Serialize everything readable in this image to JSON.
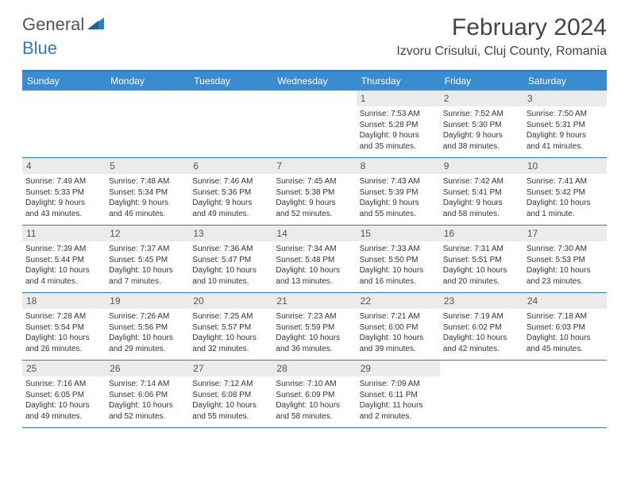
{
  "logo": {
    "general": "General",
    "blue": "Blue"
  },
  "title": "February 2024",
  "location": "Izvoru Crisului, Cluj County, Romania",
  "colors": {
    "header_bar": "#3a8bd0",
    "accent_line": "#2f7bbf",
    "day_number_bg": "#ebebeb",
    "text": "#333333",
    "background": "#ffffff"
  },
  "weekdays": [
    "Sunday",
    "Monday",
    "Tuesday",
    "Wednesday",
    "Thursday",
    "Friday",
    "Saturday"
  ],
  "weeks": [
    [
      null,
      null,
      null,
      null,
      {
        "n": "1",
        "sr": "Sunrise: 7:53 AM",
        "ss": "Sunset: 5:28 PM",
        "d1": "Daylight: 9 hours",
        "d2": "and 35 minutes."
      },
      {
        "n": "2",
        "sr": "Sunrise: 7:52 AM",
        "ss": "Sunset: 5:30 PM",
        "d1": "Daylight: 9 hours",
        "d2": "and 38 minutes."
      },
      {
        "n": "3",
        "sr": "Sunrise: 7:50 AM",
        "ss": "Sunset: 5:31 PM",
        "d1": "Daylight: 9 hours",
        "d2": "and 41 minutes."
      }
    ],
    [
      {
        "n": "4",
        "sr": "Sunrise: 7:49 AM",
        "ss": "Sunset: 5:33 PM",
        "d1": "Daylight: 9 hours",
        "d2": "and 43 minutes."
      },
      {
        "n": "5",
        "sr": "Sunrise: 7:48 AM",
        "ss": "Sunset: 5:34 PM",
        "d1": "Daylight: 9 hours",
        "d2": "and 46 minutes."
      },
      {
        "n": "6",
        "sr": "Sunrise: 7:46 AM",
        "ss": "Sunset: 5:36 PM",
        "d1": "Daylight: 9 hours",
        "d2": "and 49 minutes."
      },
      {
        "n": "7",
        "sr": "Sunrise: 7:45 AM",
        "ss": "Sunset: 5:38 PM",
        "d1": "Daylight: 9 hours",
        "d2": "and 52 minutes."
      },
      {
        "n": "8",
        "sr": "Sunrise: 7:43 AM",
        "ss": "Sunset: 5:39 PM",
        "d1": "Daylight: 9 hours",
        "d2": "and 55 minutes."
      },
      {
        "n": "9",
        "sr": "Sunrise: 7:42 AM",
        "ss": "Sunset: 5:41 PM",
        "d1": "Daylight: 9 hours",
        "d2": "and 58 minutes."
      },
      {
        "n": "10",
        "sr": "Sunrise: 7:41 AM",
        "ss": "Sunset: 5:42 PM",
        "d1": "Daylight: 10 hours",
        "d2": "and 1 minute."
      }
    ],
    [
      {
        "n": "11",
        "sr": "Sunrise: 7:39 AM",
        "ss": "Sunset: 5:44 PM",
        "d1": "Daylight: 10 hours",
        "d2": "and 4 minutes."
      },
      {
        "n": "12",
        "sr": "Sunrise: 7:37 AM",
        "ss": "Sunset: 5:45 PM",
        "d1": "Daylight: 10 hours",
        "d2": "and 7 minutes."
      },
      {
        "n": "13",
        "sr": "Sunrise: 7:36 AM",
        "ss": "Sunset: 5:47 PM",
        "d1": "Daylight: 10 hours",
        "d2": "and 10 minutes."
      },
      {
        "n": "14",
        "sr": "Sunrise: 7:34 AM",
        "ss": "Sunset: 5:48 PM",
        "d1": "Daylight: 10 hours",
        "d2": "and 13 minutes."
      },
      {
        "n": "15",
        "sr": "Sunrise: 7:33 AM",
        "ss": "Sunset: 5:50 PM",
        "d1": "Daylight: 10 hours",
        "d2": "and 16 minutes."
      },
      {
        "n": "16",
        "sr": "Sunrise: 7:31 AM",
        "ss": "Sunset: 5:51 PM",
        "d1": "Daylight: 10 hours",
        "d2": "and 20 minutes."
      },
      {
        "n": "17",
        "sr": "Sunrise: 7:30 AM",
        "ss": "Sunset: 5:53 PM",
        "d1": "Daylight: 10 hours",
        "d2": "and 23 minutes."
      }
    ],
    [
      {
        "n": "18",
        "sr": "Sunrise: 7:28 AM",
        "ss": "Sunset: 5:54 PM",
        "d1": "Daylight: 10 hours",
        "d2": "and 26 minutes."
      },
      {
        "n": "19",
        "sr": "Sunrise: 7:26 AM",
        "ss": "Sunset: 5:56 PM",
        "d1": "Daylight: 10 hours",
        "d2": "and 29 minutes."
      },
      {
        "n": "20",
        "sr": "Sunrise: 7:25 AM",
        "ss": "Sunset: 5:57 PM",
        "d1": "Daylight: 10 hours",
        "d2": "and 32 minutes."
      },
      {
        "n": "21",
        "sr": "Sunrise: 7:23 AM",
        "ss": "Sunset: 5:59 PM",
        "d1": "Daylight: 10 hours",
        "d2": "and 36 minutes."
      },
      {
        "n": "22",
        "sr": "Sunrise: 7:21 AM",
        "ss": "Sunset: 6:00 PM",
        "d1": "Daylight: 10 hours",
        "d2": "and 39 minutes."
      },
      {
        "n": "23",
        "sr": "Sunrise: 7:19 AM",
        "ss": "Sunset: 6:02 PM",
        "d1": "Daylight: 10 hours",
        "d2": "and 42 minutes."
      },
      {
        "n": "24",
        "sr": "Sunrise: 7:18 AM",
        "ss": "Sunset: 6:03 PM",
        "d1": "Daylight: 10 hours",
        "d2": "and 45 minutes."
      }
    ],
    [
      {
        "n": "25",
        "sr": "Sunrise: 7:16 AM",
        "ss": "Sunset: 6:05 PM",
        "d1": "Daylight: 10 hours",
        "d2": "and 49 minutes."
      },
      {
        "n": "26",
        "sr": "Sunrise: 7:14 AM",
        "ss": "Sunset: 6:06 PM",
        "d1": "Daylight: 10 hours",
        "d2": "and 52 minutes."
      },
      {
        "n": "27",
        "sr": "Sunrise: 7:12 AM",
        "ss": "Sunset: 6:08 PM",
        "d1": "Daylight: 10 hours",
        "d2": "and 55 minutes."
      },
      {
        "n": "28",
        "sr": "Sunrise: 7:10 AM",
        "ss": "Sunset: 6:09 PM",
        "d1": "Daylight: 10 hours",
        "d2": "and 58 minutes."
      },
      {
        "n": "29",
        "sr": "Sunrise: 7:09 AM",
        "ss": "Sunset: 6:11 PM",
        "d1": "Daylight: 11 hours",
        "d2": "and 2 minutes."
      },
      null,
      null
    ]
  ]
}
